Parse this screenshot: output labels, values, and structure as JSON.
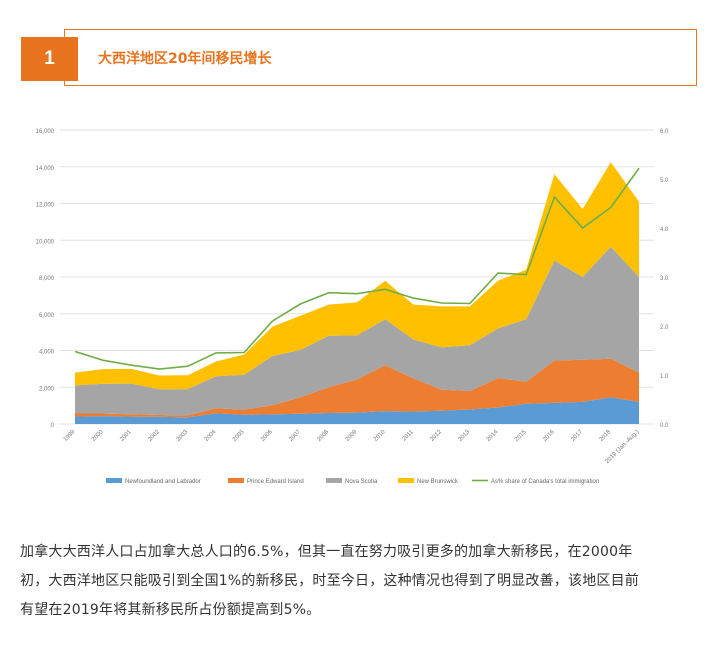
{
  "header": {
    "number": "1",
    "title": "大西洋地区20年间移民增长"
  },
  "chart_data": {
    "type": "area",
    "stacked": true,
    "categories": [
      "1999",
      "2000",
      "2001",
      "2002",
      "2003",
      "2004",
      "2005",
      "2006",
      "2007",
      "2008",
      "2009",
      "2010",
      "2011",
      "2012",
      "2013",
      "2014",
      "2015",
      "2016",
      "2017",
      "2018",
      "2019 (Jan.-Aug.)"
    ],
    "ylim": [
      0,
      16000
    ],
    "y2lim": [
      0,
      6.0
    ],
    "yticks": [
      "0",
      "2,000",
      "4,000",
      "6,000",
      "8,000",
      "10,000",
      "12,000",
      "14,000",
      "16,000"
    ],
    "y2ticks": [
      "0.0",
      "1.0",
      "2.0",
      "3.0",
      "4.0",
      "5.0",
      "6.0"
    ],
    "grid": true,
    "legend_position": "bottom",
    "series": [
      {
        "name": "Newfoundland and Labrador",
        "color": "#5b9bd5",
        "values": [
          400,
          430,
          400,
          390,
          360,
          580,
          500,
          520,
          560,
          600,
          620,
          700,
          680,
          720,
          790,
          900,
          1100,
          1150,
          1200,
          1450,
          1200
        ]
      },
      {
        "name": "Prince Edward Island",
        "color": "#ed7d31",
        "values": [
          170,
          140,
          130,
          100,
          100,
          280,
          280,
          500,
          900,
          1400,
          1800,
          2500,
          1800,
          1150,
          1000,
          1600,
          1200,
          2300,
          2300,
          2100,
          1600
        ]
      },
      {
        "name": "Nova Scotia",
        "color": "#a5a5a5",
        "values": [
          1530,
          1620,
          1670,
          1400,
          1440,
          1740,
          1900,
          2680,
          2580,
          2800,
          2400,
          2500,
          2120,
          2300,
          2500,
          2700,
          3400,
          5450,
          4500,
          6100,
          5200
        ]
      },
      {
        "name": "New Brunswick",
        "color": "#ffc000",
        "values": [
          700,
          800,
          800,
          750,
          750,
          800,
          1100,
          1600,
          1860,
          1700,
          1800,
          2100,
          1900,
          2230,
          2110,
          2600,
          2700,
          4700,
          3700,
          4600,
          4100
        ]
      }
    ],
    "line_series": {
      "name": "As% share of Canada's total immigration",
      "color": "#70ad47",
      "axis": "right",
      "values": [
        1.48,
        1.3,
        1.2,
        1.12,
        1.18,
        1.45,
        1.46,
        2.1,
        2.45,
        2.68,
        2.66,
        2.75,
        2.57,
        2.47,
        2.46,
        3.08,
        3.05,
        4.63,
        4.0,
        4.42,
        5.22
      ]
    }
  },
  "paragraph": {
    "lines": [
      "加拿大大西洋人口占加拿大总人口的6.5%，但其一直在努力吸引更多的加拿大新移民，在2000年",
      "初，大西洋地区只能吸引到全国1%的新移民，时至今日，这种情况也得到了明显改善，该地区目前",
      "有望在2019年将其新移民所占份额提高到5%。"
    ]
  }
}
